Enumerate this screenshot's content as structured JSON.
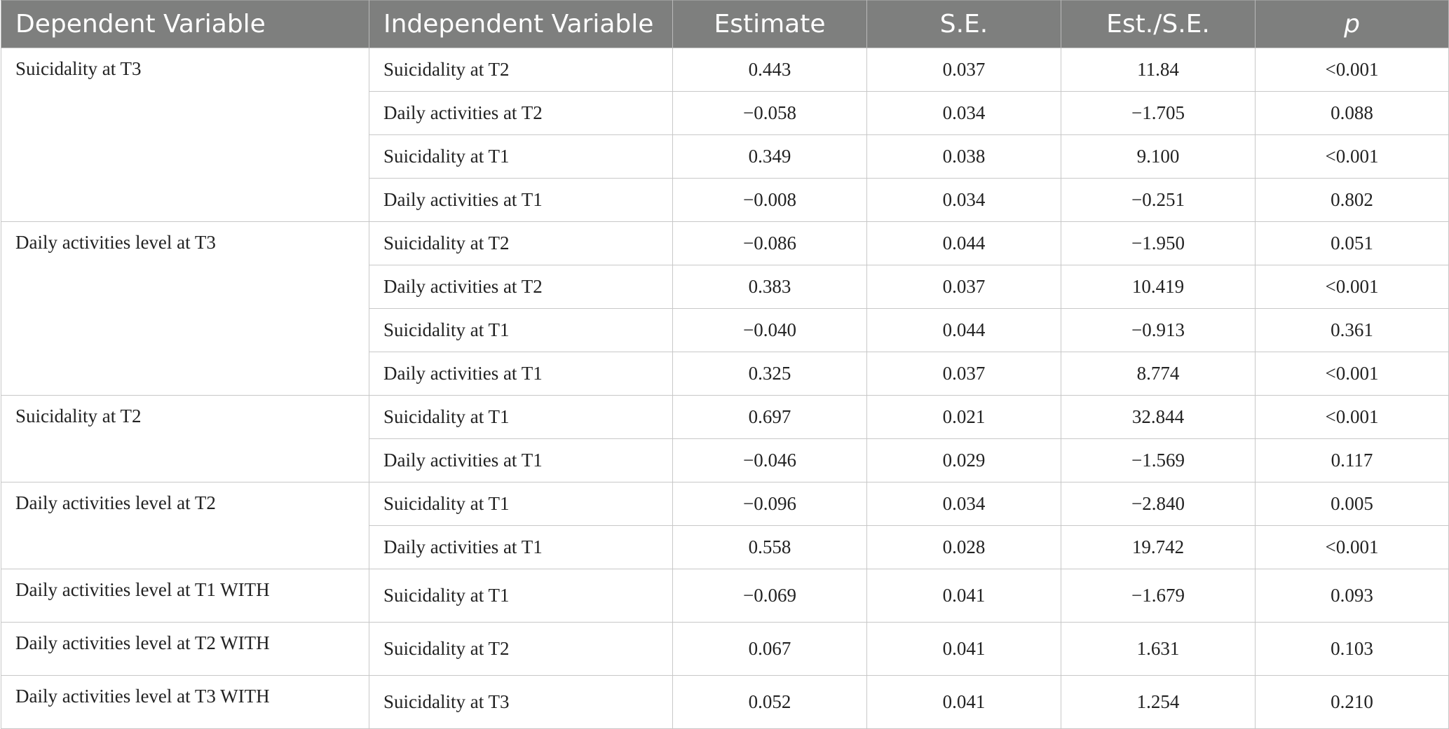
{
  "table": {
    "headers": {
      "dependent": "Dependent Variable",
      "independent": "Independent Variable",
      "estimate": "Estimate",
      "se": "S.E.",
      "est_se": "Est./S.E.",
      "p": "p"
    },
    "groups": [
      {
        "dependent": "Suicidality at T3",
        "rows": [
          {
            "independent": "Suicidality at T2",
            "estimate": "0.443",
            "se": "0.037",
            "est_se": "11.84",
            "p": "<0.001"
          },
          {
            "independent": "Daily activities at T2",
            "estimate": "−0.058",
            "se": "0.034",
            "est_se": "−1.705",
            "p": "0.088"
          },
          {
            "independent": "Suicidality at T1",
            "estimate": "0.349",
            "se": "0.038",
            "est_se": "9.100",
            "p": "<0.001"
          },
          {
            "independent": "Daily activities at T1",
            "estimate": "−0.008",
            "se": "0.034",
            "est_se": "−0.251",
            "p": "0.802"
          }
        ]
      },
      {
        "dependent": "Daily activities level at T3",
        "rows": [
          {
            "independent": "Suicidality at T2",
            "estimate": "−0.086",
            "se": "0.044",
            "est_se": "−1.950",
            "p": "0.051"
          },
          {
            "independent": "Daily activities at T2",
            "estimate": "0.383",
            "se": "0.037",
            "est_se": "10.419",
            "p": "<0.001"
          },
          {
            "independent": "Suicidality at T1",
            "estimate": "−0.040",
            "se": "0.044",
            "est_se": "−0.913",
            "p": "0.361"
          },
          {
            "independent": "Daily activities at T1",
            "estimate": "0.325",
            "se": "0.037",
            "est_se": "8.774",
            "p": "<0.001"
          }
        ]
      },
      {
        "dependent": "Suicidality at T2",
        "rows": [
          {
            "independent": "Suicidality at T1",
            "estimate": "0.697",
            "se": "0.021",
            "est_se": "32.844",
            "p": "<0.001"
          },
          {
            "independent": "Daily activities at T1",
            "estimate": "−0.046",
            "se": "0.029",
            "est_se": "−1.569",
            "p": "0.117"
          }
        ]
      },
      {
        "dependent": "Daily activities level at T2",
        "rows": [
          {
            "independent": "Suicidality at T1",
            "estimate": "−0.096",
            "se": "0.034",
            "est_se": "−2.840",
            "p": "0.005"
          },
          {
            "independent": "Daily activities at T1",
            "estimate": "0.558",
            "se": "0.028",
            "est_se": "19.742",
            "p": "<0.001"
          }
        ]
      },
      {
        "dependent": "Daily activities level at T1 WITH",
        "rows": [
          {
            "independent": "Suicidality at T1",
            "estimate": "−0.069",
            "se": "0.041",
            "est_se": "−1.679",
            "p": "0.093"
          }
        ]
      },
      {
        "dependent": "Daily activities level at T2 WITH",
        "rows": [
          {
            "independent": "Suicidality at T2",
            "estimate": "0.067",
            "se": "0.041",
            "est_se": "1.631",
            "p": "0.103"
          }
        ]
      },
      {
        "dependent": "Daily activities level at T3 WITH",
        "rows": [
          {
            "independent": "Suicidality at T3",
            "estimate": "0.052",
            "se": "0.041",
            "est_se": "1.254",
            "p": "0.210"
          }
        ]
      }
    ]
  }
}
